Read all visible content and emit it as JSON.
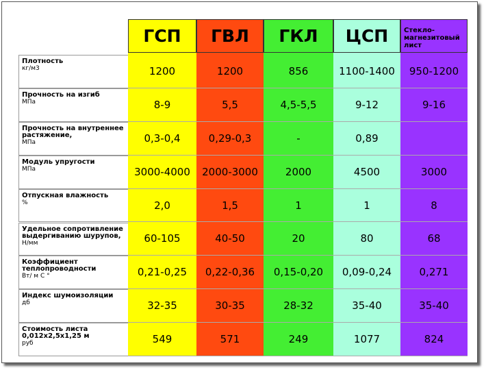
{
  "table": {
    "headers": [
      "ГСП",
      "ГВЛ",
      "ГКЛ",
      "ЦСП",
      "Стекло-магнезитовый лист"
    ],
    "rows": [
      {
        "name": "Плотность",
        "unit": "кг/м3",
        "values": [
          "1200",
          "1200",
          "856",
          "1100-1400",
          "950-1200"
        ]
      },
      {
        "name": "Прочность на изгиб",
        "unit": "МПа",
        "values": [
          "8-9",
          "5,5",
          "4,5-5,5",
          "9-12",
          "9-16"
        ]
      },
      {
        "name": "Прочность на внутреннее растяжение,",
        "unit": "МПа",
        "values": [
          "0,3-0,4",
          "0,29-0,3",
          "-",
          "0,89",
          null
        ]
      },
      {
        "name": "Модуль упругости",
        "unit": "МПа",
        "values": [
          "3000-4000",
          "2000-3000",
          "2000",
          "4500",
          "3000"
        ]
      },
      {
        "name": "Отпускная влажность",
        "unit": "%",
        "values": [
          "2,0",
          "1,5",
          "1",
          "1",
          "8"
        ]
      },
      {
        "name": "Удельное сопротивление выдергиванию шурупов,",
        "unit": "Н/мм",
        "values": [
          "60-105",
          "40-50",
          "20",
          "80",
          "68"
        ]
      },
      {
        "name": "Коэффициент теплопроводности",
        "unit": "Вт/ м С °",
        "values": [
          "0,21-0,25",
          "0,22-0,36",
          "0,15-0,20",
          "0,09-0,24",
          "0,271"
        ]
      },
      {
        "name": "Индекс шумоизоляции",
        "unit": "дб",
        "values": [
          "32-35",
          "30-35",
          "28-32",
          "35-40",
          "35-40"
        ]
      },
      {
        "name": "Стоимость листа 0,012х2,5х1,25 м",
        "unit": "руб",
        "values": [
          "549",
          "571",
          "249",
          "1077",
          "824"
        ]
      }
    ]
  }
}
